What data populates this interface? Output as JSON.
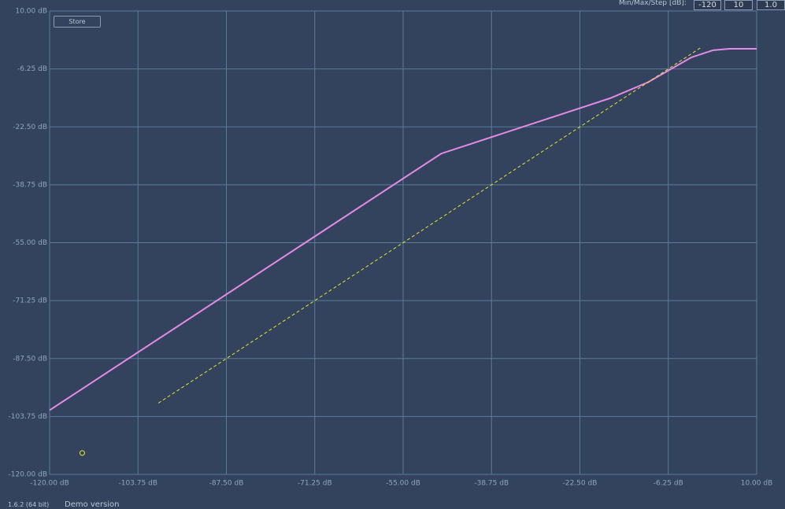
{
  "chart_data": {
    "type": "line",
    "xlim": [
      -120,
      10
    ],
    "ylim": [
      -120,
      10
    ],
    "xticks": [
      {
        "value": -120,
        "label": "-120.00 dB"
      },
      {
        "value": -103.75,
        "label": "-103.75 dB"
      },
      {
        "value": -87.5,
        "label": "-87.50 dB"
      },
      {
        "value": -71.25,
        "label": "-71.25 dB"
      },
      {
        "value": -55,
        "label": "-55.00 dB"
      },
      {
        "value": -38.75,
        "label": "-38.75 dB"
      },
      {
        "value": -22.5,
        "label": "-22.50 dB"
      },
      {
        "value": -6.25,
        "label": "-6.25 dB"
      },
      {
        "value": 10,
        "label": "10.00 dB"
      }
    ],
    "yticks": [
      {
        "value": -120,
        "label": "-120.00 dB"
      },
      {
        "value": -103.75,
        "label": "-103.75 dB"
      },
      {
        "value": -87.5,
        "label": "-87.50 dB"
      },
      {
        "value": -71.25,
        "label": "-71.25 dB"
      },
      {
        "value": -55,
        "label": "-55.00 dB"
      },
      {
        "value": -38.75,
        "label": "-38.75 dB"
      },
      {
        "value": -22.5,
        "label": "-22.50 dB"
      },
      {
        "value": -6.25,
        "label": "-6.25 dB"
      },
      {
        "value": 10,
        "label": "10.00 dB"
      }
    ],
    "grid": true,
    "series": [
      {
        "color": "#e58be6",
        "style": "solid",
        "x": [
          -120,
          -48,
          -17,
          -10,
          -6,
          -2,
          2,
          5,
          10
        ],
        "values": [
          -102,
          -30,
          -14.5,
          -10,
          -6.5,
          -3,
          -1,
          -0.6,
          -0.6
        ]
      },
      {
        "color": "#e6e62a",
        "style": "dashed",
        "x": [
          -100,
          -0.2
        ],
        "values": [
          -100,
          -0.2
        ]
      },
      {
        "color": "#f0f020",
        "style": "point",
        "x": [
          -114
        ],
        "values": [
          -114
        ]
      }
    ]
  },
  "controls": {
    "label": "Min/Max/Step [dB]:",
    "min": "-120",
    "max": "10",
    "step": "1.0",
    "store": "Store"
  },
  "footer": {
    "version": "1.6.2 (64 bit)",
    "edition": "Demo version"
  }
}
